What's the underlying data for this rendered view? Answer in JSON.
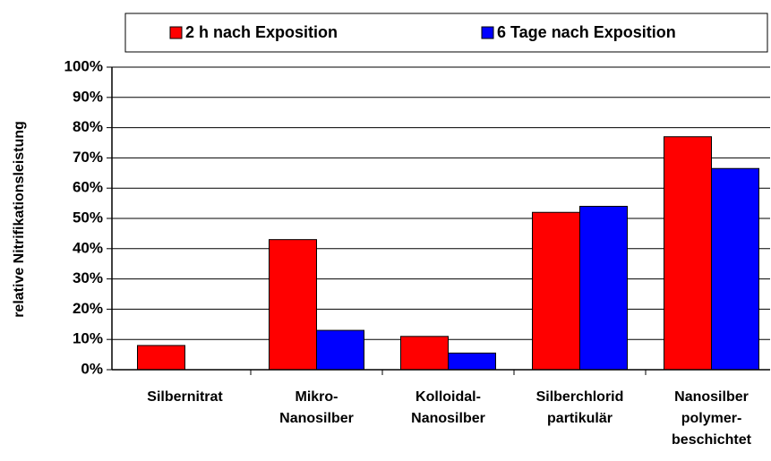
{
  "chart_data": {
    "type": "bar",
    "y_label": "relative Nitrifikationsleistung",
    "categories": [
      "Silbernitrat",
      "Mikro-\nNanosilber",
      "Kolloidal-\nNanosilber",
      "Silberchlorid\npartikulär",
      "Nanosilber\npolymer-\nbeschichtet"
    ],
    "series": [
      {
        "name": "2 h nach Exposition",
        "color": "#ff0000",
        "values": [
          8,
          43,
          11,
          52,
          77
        ]
      },
      {
        "name": "6 Tage nach Exposition",
        "color": "#0000ff",
        "values": [
          0,
          13,
          5.5,
          54,
          66.5
        ]
      }
    ],
    "ylim": [
      0,
      100
    ],
    "yticks": [
      {
        "value": 0,
        "label": "0%"
      },
      {
        "value": 10,
        "label": "10%"
      },
      {
        "value": 20,
        "label": "20%"
      },
      {
        "value": 30,
        "label": "30%"
      },
      {
        "value": 40,
        "label": "40%"
      },
      {
        "value": 50,
        "label": "50%"
      },
      {
        "value": 60,
        "label": "60%"
      },
      {
        "value": 70,
        "label": "70%"
      },
      {
        "value": 80,
        "label": "80%"
      },
      {
        "value": 90,
        "label": "90%"
      },
      {
        "value": 100,
        "label": "100%"
      }
    ],
    "grid": true,
    "legend": "top"
  }
}
